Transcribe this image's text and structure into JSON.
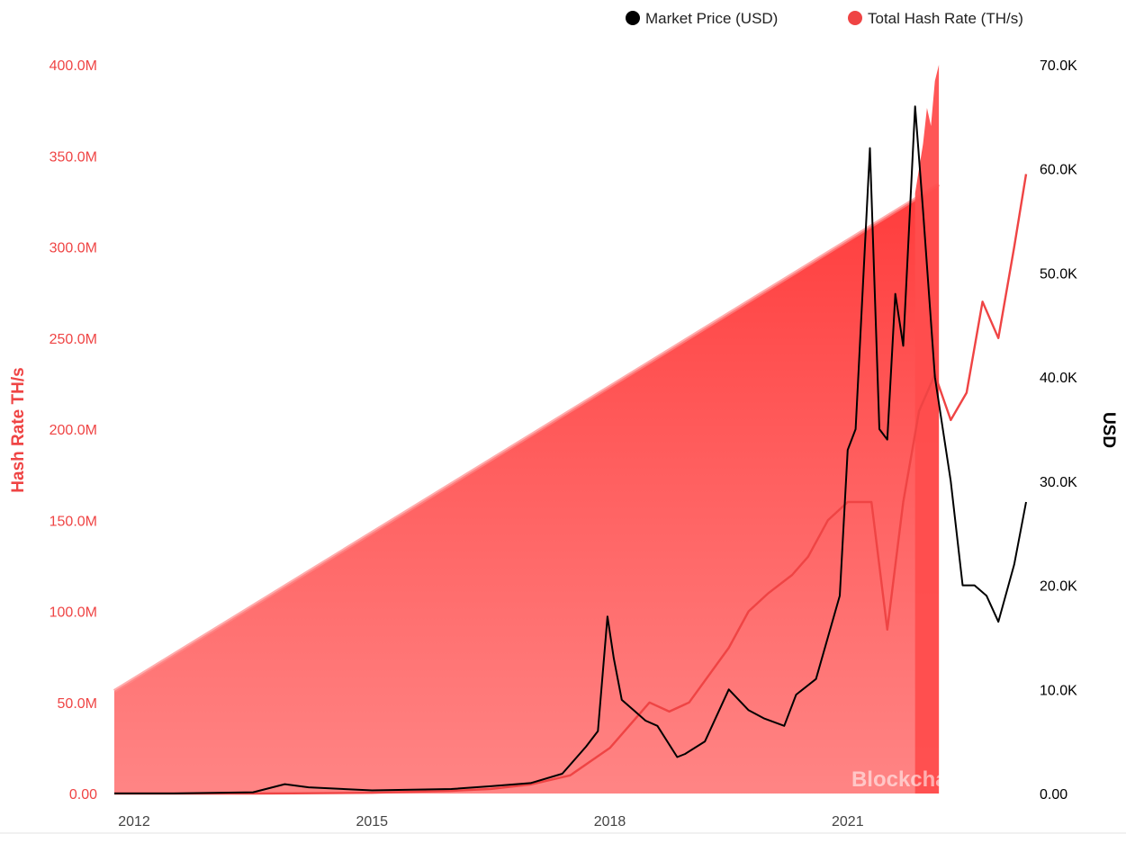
{
  "chart_data": {
    "type": "line",
    "legend": {
      "placement": "top-right",
      "items": [
        {
          "label": "Market Price (USD)",
          "color": "#000000"
        },
        {
          "label": "Total Hash Rate (TH/s)",
          "color": "#ef4444"
        }
      ]
    },
    "x_ticks": [
      "2012",
      "2015",
      "2018",
      "2021"
    ],
    "x_tick_years": [
      2012,
      2015,
      2018,
      2021
    ],
    "x_range": [
      2011.75,
      2023.25
    ],
    "y_left": {
      "label": "Hash Rate TH/s",
      "range": [
        0,
        400000000
      ],
      "ticks": [
        0,
        50000000,
        100000000,
        150000000,
        200000000,
        250000000,
        300000000,
        350000000,
        400000000
      ],
      "tick_labels": [
        "0.00",
        "50.0M",
        "100.0M",
        "150.0M",
        "200.0M",
        "250.0M",
        "300.0M",
        "350.0M",
        "400.0M"
      ],
      "color": "#ef4444"
    },
    "y_right": {
      "label": "USD",
      "range": [
        0,
        70000
      ],
      "ticks": [
        0,
        10000,
        20000,
        30000,
        40000,
        50000,
        60000,
        70000
      ],
      "tick_labels": [
        "0.00",
        "10.0K",
        "20.0K",
        "30.0K",
        "40.0K",
        "50.0K",
        "60.0K",
        "70.0K"
      ],
      "color": "#000000"
    },
    "watermark": "Blockchain.com",
    "series": [
      {
        "name": "Market Price (USD)",
        "axis": "right",
        "color": "#000000",
        "x": [
          2011.75,
          2012.5,
          2013.5,
          2013.9,
          2014.2,
          2015.0,
          2016.0,
          2016.5,
          2017.0,
          2017.4,
          2017.7,
          2017.85,
          2017.97,
          2018.05,
          2018.15,
          2018.3,
          2018.45,
          2018.6,
          2018.85,
          2018.95,
          2019.2,
          2019.5,
          2019.75,
          2019.95,
          2020.2,
          2020.35,
          2020.6,
          2020.9,
          2021.0,
          2021.1,
          2021.28,
          2021.4,
          2021.5,
          2021.6,
          2021.7,
          2021.85,
          2021.95,
          2022.1,
          2022.3,
          2022.45,
          2022.6,
          2022.75,
          2022.9,
          2023.1,
          2023.25
        ],
        "y": [
          10,
          10,
          120,
          900,
          600,
          300,
          430,
          700,
          1000,
          1900,
          4500,
          6000,
          17000,
          13000,
          9000,
          8000,
          7000,
          6500,
          3500,
          3800,
          5000,
          10000,
          8000,
          7200,
          6500,
          9500,
          11000,
          19000,
          33000,
          35000,
          62000,
          35000,
          34000,
          48000,
          43000,
          66000,
          56000,
          40000,
          30000,
          20000,
          20000,
          19000,
          16500,
          22000,
          28000
        ]
      },
      {
        "name": "Total Hash Rate (TH/s)",
        "axis": "left",
        "color": "#ef4444",
        "x": [
          2011.75,
          2013.5,
          2014.0,
          2015.0,
          2016.0,
          2016.5,
          2017.0,
          2017.5,
          2018.0,
          2018.5,
          2018.75,
          2019.0,
          2019.5,
          2019.75,
          2020.0,
          2020.3,
          2020.5,
          2020.75,
          2021.0,
          2021.3,
          2021.5,
          2021.7,
          2021.9,
          2022.1,
          2022.3,
          2022.5,
          2022.7,
          2022.9,
          2023.1,
          2023.25
        ],
        "y": [
          0,
          0,
          100000,
          400000,
          1500000,
          2500000,
          5000000,
          10000000,
          25000000,
          50000000,
          45000000,
          50000000,
          80000000,
          100000000,
          110000000,
          120000000,
          130000000,
          150000000,
          160000000,
          160000000,
          90000000,
          160000000,
          210000000,
          230000000,
          205000000,
          220000000,
          270000000,
          250000000,
          300000000,
          340000000
        ]
      }
    ]
  }
}
